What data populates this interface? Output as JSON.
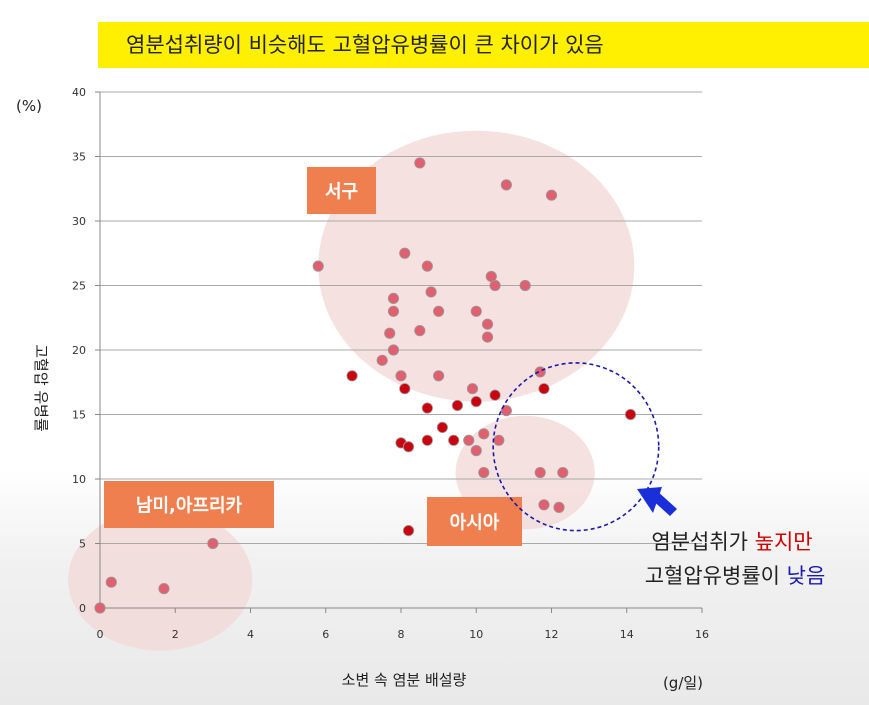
{
  "headline": "염분섭취량이 비슷해도 고혈압유병률이 큰 차이가 있음",
  "colors": {
    "headline_bg": "#ffef00",
    "point_light": "#e06070",
    "point_dark": "#c8000f",
    "region_fill": "#f4d9d9",
    "region_label_bg": "#f07f4f",
    "highlight_ellipse": "#1a1aa8",
    "arrow": "#1a2fd8",
    "emphasis_red": "#d00000",
    "emphasis_blue": "#1a1ab0"
  },
  "chart_data": {
    "type": "scatter",
    "xlabel": "소변 속 염분 배설량",
    "xunit": "(g/일)",
    "ylabel": "고혈압 유병률",
    "yunit": "(%)",
    "xlim": [
      0,
      16
    ],
    "ylim": [
      0,
      40
    ],
    "xticks": [
      "0",
      "2",
      "4",
      "6",
      "8",
      "10",
      "12",
      "14",
      "16"
    ],
    "yticks": [
      "0",
      "5",
      "10",
      "15",
      "20",
      "25",
      "30",
      "35",
      "40"
    ],
    "grid": "horizontal",
    "regions": [
      {
        "label": "서구",
        "cx": 10,
        "cy": 26.5,
        "rx": 4.2,
        "ry": 10.5
      },
      {
        "label": "아시아",
        "cx": 11.3,
        "cy": 10.5,
        "rx": 1.85,
        "ry": 4.4
      },
      {
        "label": "남미,아프리카",
        "cx": 1.6,
        "cy": 2.2,
        "rx": 2.45,
        "ry": 5.5
      }
    ],
    "highlight": {
      "cx": 12.65,
      "cy": 12.5,
      "rx": 2.2,
      "ry": 6.5
    },
    "series": [
      {
        "style": "light",
        "points": [
          [
            0,
            0
          ],
          [
            0.3,
            2
          ],
          [
            1.7,
            1.5
          ],
          [
            3.0,
            5
          ],
          [
            5.8,
            26.5
          ],
          [
            8.5,
            34.5
          ],
          [
            10.8,
            32.8
          ],
          [
            12.0,
            32
          ],
          [
            8.1,
            27.5
          ],
          [
            8.7,
            26.5
          ],
          [
            10.4,
            25.7
          ],
          [
            10.5,
            25
          ],
          [
            11.3,
            25
          ],
          [
            7.8,
            24
          ],
          [
            8.8,
            24.5
          ],
          [
            7.8,
            23
          ],
          [
            9.0,
            23
          ],
          [
            10.0,
            23
          ],
          [
            10.3,
            22
          ],
          [
            7.7,
            21.3
          ],
          [
            8.5,
            21.5
          ],
          [
            10.3,
            21
          ],
          [
            7.8,
            20
          ],
          [
            7.5,
            19.2
          ],
          [
            8.0,
            18
          ],
          [
            9.0,
            18
          ],
          [
            11.7,
            18.3
          ],
          [
            9.9,
            17
          ],
          [
            10.8,
            15.3
          ],
          [
            9.8,
            13
          ],
          [
            10.2,
            13.5
          ],
          [
            10.6,
            13
          ],
          [
            10.0,
            12.2
          ],
          [
            10.2,
            10.5
          ],
          [
            11.7,
            10.5
          ],
          [
            12.3,
            10.5
          ],
          [
            11.8,
            8
          ],
          [
            12.2,
            7.8
          ]
        ]
      },
      {
        "style": "dark",
        "points": [
          [
            6.7,
            18
          ],
          [
            8.1,
            17
          ],
          [
            11.8,
            17
          ],
          [
            8.7,
            15.5
          ],
          [
            9.5,
            15.7
          ],
          [
            10.0,
            16
          ],
          [
            10.5,
            16.5
          ],
          [
            14.1,
            15
          ],
          [
            9.1,
            14
          ],
          [
            8.0,
            12.8
          ],
          [
            8.2,
            12.5
          ],
          [
            8.7,
            13
          ],
          [
            9.4,
            13
          ],
          [
            8.2,
            6
          ]
        ]
      }
    ]
  },
  "callout": {
    "line1_prefix": "염분섭취가 ",
    "line1_emph": "높지만",
    "line2_prefix": "고혈압유병률이 ",
    "line2_emph": "낮음"
  }
}
